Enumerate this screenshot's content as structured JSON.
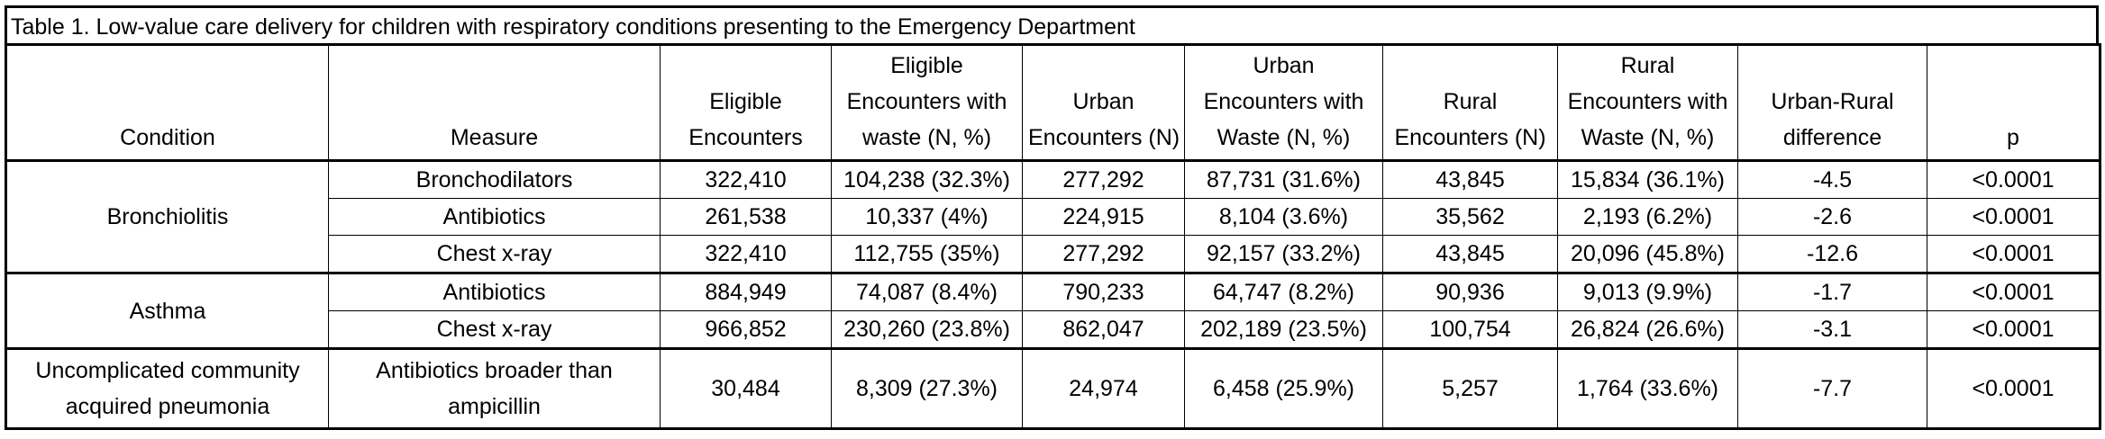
{
  "caption": "Table 1. Low-value care delivery for children with respiratory conditions presenting to the Emergency Department",
  "headers": [
    [
      "Condition"
    ],
    [
      "Measure"
    ],
    [
      "Eligible",
      "Encounters"
    ],
    [
      "Eligible",
      "Encounters with",
      "waste (N, %)"
    ],
    [
      "Urban",
      "Encounters (N)"
    ],
    [
      "Urban",
      "Encounters with",
      "Waste (N, %)"
    ],
    [
      "Rural",
      "Encounters (N)"
    ],
    [
      "Rural",
      "Encounters with",
      "Waste (N, %)"
    ],
    [
      "Urban-Rural",
      "difference"
    ],
    [
      "p"
    ]
  ],
  "groups": [
    {
      "condition": "Bronchiolitis",
      "rows": [
        {
          "measure": "Bronchodilators",
          "eligible": "322,410",
          "eligible_waste": "104,238 (32.3%)",
          "urban": "277,292",
          "urban_waste": "87,731 (31.6%)",
          "rural": "43,845",
          "rural_waste": "15,834 (36.1%)",
          "diff": "-4.5",
          "p": "<0.0001"
        },
        {
          "measure": "Antibiotics",
          "eligible": "261,538",
          "eligible_waste": "10,337 (4%)",
          "urban": "224,915",
          "urban_waste": "8,104 (3.6%)",
          "rural": "35,562",
          "rural_waste": "2,193 (6.2%)",
          "diff": "-2.6",
          "p": "<0.0001"
        },
        {
          "measure": "Chest x-ray",
          "eligible": "322,410",
          "eligible_waste": "112,755 (35%)",
          "urban": "277,292",
          "urban_waste": "92,157 (33.2%)",
          "rural": "43,845",
          "rural_waste": "20,096 (45.8%)",
          "diff": "-12.6",
          "p": "<0.0001"
        }
      ]
    },
    {
      "condition": "Asthma",
      "rows": [
        {
          "measure": "Antibiotics",
          "eligible": "884,949",
          "eligible_waste": "74,087 (8.4%)",
          "urban": "790,233",
          "urban_waste": "64,747 (8.2%)",
          "rural": "90,936",
          "rural_waste": "9,013 (9.9%)",
          "diff": "-1.7",
          "p": "<0.0001"
        },
        {
          "measure": "Chest x-ray",
          "eligible": "966,852",
          "eligible_waste": "230,260 (23.8%)",
          "urban": "862,047",
          "urban_waste": "202,189 (23.5%)",
          "rural": "100,754",
          "rural_waste": "26,824 (26.6%)",
          "diff": "-3.1",
          "p": "<0.0001"
        }
      ]
    },
    {
      "condition": "Uncomplicated community acquired pneumonia",
      "rows": [
        {
          "measure": "Antibiotics broader than ampicillin",
          "eligible": "30,484",
          "eligible_waste": "8,309 (27.3%)",
          "urban": "24,974",
          "urban_waste": "6,458 (25.9%)",
          "rural": "5,257",
          "rural_waste": "1,764 (33.6%)",
          "diff": "-7.7",
          "p": "<0.0001"
        }
      ]
    }
  ]
}
